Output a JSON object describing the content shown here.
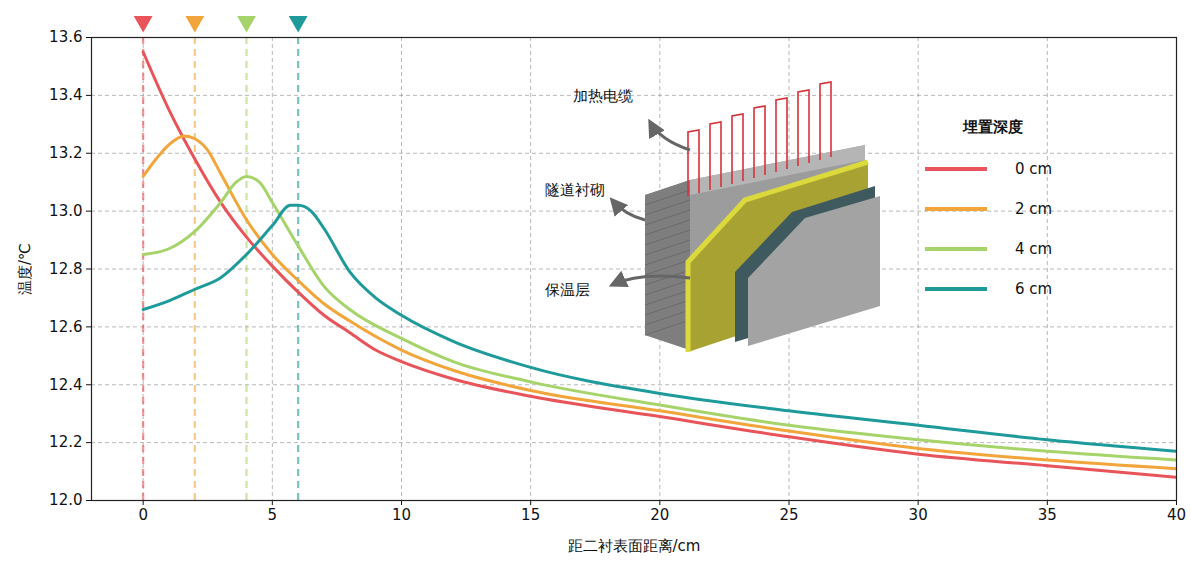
{
  "chart_data": {
    "type": "line",
    "x_label": "距二衬表面距离/cm",
    "y_label": "温度/℃",
    "legend_title": "埋置深度",
    "legend": "upper right",
    "grid": true,
    "annotations": [
      "加热电缆",
      "隧道衬砌",
      "保温层"
    ],
    "xlim": [
      -2,
      40
    ],
    "xticks": [
      0,
      5,
      10,
      15,
      20,
      25,
      30,
      35,
      40
    ],
    "ylim": [
      12.0,
      13.6
    ],
    "yticks": [
      {
        "value": 12,
        "label": "12.0"
      },
      12.2,
      12.4,
      12.6,
      12.8,
      {
        "value": 13,
        "label": "13.0"
      },
      13.2,
      13.4,
      13.6
    ],
    "series": [
      {
        "name": "0 cm",
        "color": "#e8545a",
        "burial_depth": 0,
        "x": [
          0,
          1,
          2,
          3,
          4,
          5,
          6,
          7,
          8,
          9,
          10,
          12,
          15,
          20,
          25,
          30,
          35,
          40
        ],
        "values": [
          13.55,
          13.35,
          13.18,
          13.03,
          12.91,
          12.81,
          12.72,
          12.64,
          12.58,
          12.52,
          12.48,
          12.42,
          12.36,
          12.29,
          12.22,
          12.16,
          12.12,
          12.08
        ]
      },
      {
        "name": "2 cm",
        "color": "#f2a53a",
        "burial_depth": 2,
        "x": [
          0,
          0.5,
          1,
          1.6,
          2,
          2.5,
          3,
          4,
          5,
          6,
          7,
          8,
          10,
          12,
          15,
          20,
          25,
          30,
          35,
          40
        ],
        "values": [
          13.12,
          13.18,
          13.23,
          13.26,
          13.25,
          13.21,
          13.13,
          12.97,
          12.85,
          12.76,
          12.68,
          12.62,
          12.52,
          12.45,
          12.38,
          12.31,
          12.24,
          12.18,
          12.14,
          12.11
        ]
      },
      {
        "name": "4 cm",
        "color": "#a6d46a",
        "burial_depth": 4,
        "x": [
          0,
          1,
          2,
          3,
          3.6,
          4,
          4.5,
          5,
          6,
          7,
          8,
          10,
          12,
          15,
          20,
          25,
          30,
          35,
          40
        ],
        "values": [
          12.85,
          12.87,
          12.93,
          13.03,
          13.1,
          13.12,
          13.1,
          13.03,
          12.88,
          12.74,
          12.66,
          12.56,
          12.48,
          12.41,
          12.33,
          12.26,
          12.21,
          12.17,
          12.14
        ]
      },
      {
        "name": "6 cm",
        "color": "#1e9a9a",
        "burial_depth": 6,
        "x": [
          0,
          1,
          2,
          3,
          4,
          5,
          5.7,
          6,
          6.5,
          7,
          8,
          9,
          10,
          12,
          15,
          20,
          25,
          30,
          35,
          40
        ],
        "values": [
          12.66,
          12.69,
          12.73,
          12.77,
          12.85,
          12.95,
          13.02,
          13.02,
          13.0,
          12.94,
          12.79,
          12.7,
          12.64,
          12.55,
          12.46,
          12.37,
          12.31,
          12.26,
          12.21,
          12.17
        ]
      }
    ]
  }
}
